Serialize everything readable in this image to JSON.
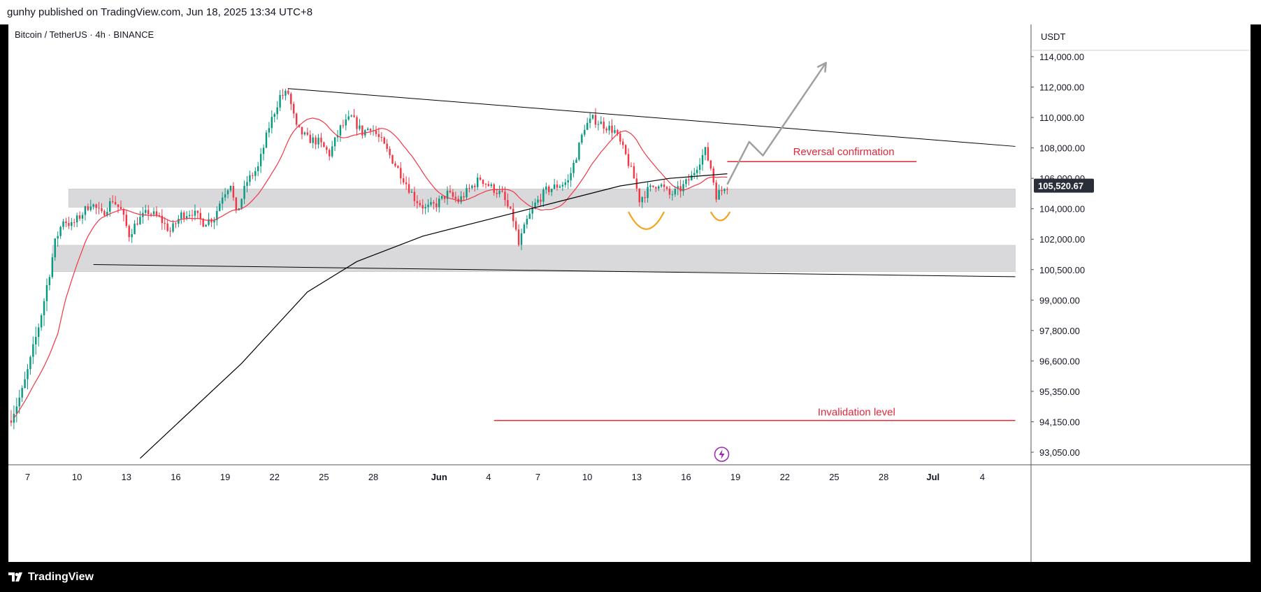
{
  "header": {
    "publisher_line": "gunhy published on TradingView.com, Jun 18, 2025 13:34 UTC+8"
  },
  "footer": {
    "brand": "TradingView"
  },
  "chart_data": {
    "type": "candlestick",
    "symbol_line": "Bitcoin / TetherUS · 4h · BINANCE",
    "currency": "USDT",
    "last_price": 105520.67,
    "last_price_label": "105,520.67",
    "y_ticks": [
      {
        "value": 114000,
        "label": "114,000.00"
      },
      {
        "value": 112000,
        "label": "112,000.00"
      },
      {
        "value": 110000,
        "label": "110,000.00"
      },
      {
        "value": 108000,
        "label": "108,000.00"
      },
      {
        "value": 106000,
        "label": "106,000.00"
      },
      {
        "value": 104000,
        "label": "104,000.00"
      },
      {
        "value": 102000,
        "label": "102,000.00"
      },
      {
        "value": 100500,
        "label": "100,500.00"
      },
      {
        "value": 99000,
        "label": "99,000.00"
      },
      {
        "value": 97800,
        "label": "97,800.00"
      },
      {
        "value": 96600,
        "label": "96,600.00"
      },
      {
        "value": 95350,
        "label": "95,350.00"
      },
      {
        "value": 94150,
        "label": "94,150.00"
      },
      {
        "value": 93050,
        "label": "93,050.00"
      }
    ],
    "x_ticks": [
      {
        "date": "2025-05-07",
        "label": "7"
      },
      {
        "date": "2025-05-10",
        "label": "10"
      },
      {
        "date": "2025-05-13",
        "label": "13"
      },
      {
        "date": "2025-05-16",
        "label": "16"
      },
      {
        "date": "2025-05-19",
        "label": "19"
      },
      {
        "date": "2025-05-22",
        "label": "22"
      },
      {
        "date": "2025-05-25",
        "label": "25"
      },
      {
        "date": "2025-05-28",
        "label": "28"
      },
      {
        "date": "2025-06-01",
        "label": "Jun"
      },
      {
        "date": "2025-06-04",
        "label": "4"
      },
      {
        "date": "2025-06-07",
        "label": "7"
      },
      {
        "date": "2025-06-10",
        "label": "10"
      },
      {
        "date": "2025-06-13",
        "label": "13"
      },
      {
        "date": "2025-06-16",
        "label": "16"
      },
      {
        "date": "2025-06-19",
        "label": "19"
      },
      {
        "date": "2025-06-22",
        "label": "22"
      },
      {
        "date": "2025-06-25",
        "label": "25"
      },
      {
        "date": "2025-06-28",
        "label": "28"
      },
      {
        "date": "2025-07-01",
        "label": "Jul"
      },
      {
        "date": "2025-07-04",
        "label": "4"
      }
    ],
    "price_path": [
      [
        "2025-05-06 00:00",
        94200
      ],
      [
        "2025-05-06 20:00",
        95300
      ],
      [
        "2025-05-07 12:00",
        97000
      ],
      [
        "2025-05-08 04:00",
        99000
      ],
      [
        "2025-05-08 20:00",
        101800
      ],
      [
        "2025-05-09 08:00",
        103300
      ],
      [
        "2025-05-09 20:00",
        102900
      ],
      [
        "2025-05-10 12:00",
        103700
      ],
      [
        "2025-05-11 00:00",
        104400
      ],
      [
        "2025-05-11 16:00",
        103600
      ],
      [
        "2025-05-12 08:00",
        104600
      ],
      [
        "2025-05-12 20:00",
        103900
      ],
      [
        "2025-05-13 08:00",
        102300
      ],
      [
        "2025-05-13 20:00",
        103200
      ],
      [
        "2025-05-14 12:00",
        103800
      ],
      [
        "2025-05-15 04:00",
        103400
      ],
      [
        "2025-05-15 20:00",
        102500
      ],
      [
        "2025-05-16 12:00",
        103600
      ],
      [
        "2025-05-17 04:00",
        103800
      ],
      [
        "2025-05-17 20:00",
        103100
      ],
      [
        "2025-05-18 12:00",
        103400
      ],
      [
        "2025-05-19 00:00",
        104900
      ],
      [
        "2025-05-19 12:00",
        105700
      ],
      [
        "2025-05-19 20:00",
        103600
      ],
      [
        "2025-05-20 12:00",
        105800
      ],
      [
        "2025-05-21 04:00",
        106700
      ],
      [
        "2025-05-21 20:00",
        109400
      ],
      [
        "2025-05-22 12:00",
        111400
      ],
      [
        "2025-05-23 00:00",
        111600
      ],
      [
        "2025-05-23 12:00",
        109300
      ],
      [
        "2025-05-24 04:00",
        108600
      ],
      [
        "2025-05-24 20:00",
        108400
      ],
      [
        "2025-05-25 12:00",
        107600
      ],
      [
        "2025-05-26 04:00",
        109300
      ],
      [
        "2025-05-26 20:00",
        110000
      ],
      [
        "2025-05-27 12:00",
        109000
      ],
      [
        "2025-05-28 00:00",
        109400
      ],
      [
        "2025-05-28 16:00",
        108400
      ],
      [
        "2025-05-29 08:00",
        107200
      ],
      [
        "2025-05-30 00:00",
        106000
      ],
      [
        "2025-05-30 16:00",
        104700
      ],
      [
        "2025-05-31 08:00",
        104000
      ],
      [
        "2025-06-01 00:00",
        104300
      ],
      [
        "2025-06-01 16:00",
        105000
      ],
      [
        "2025-06-02 08:00",
        104500
      ],
      [
        "2025-06-03 00:00",
        105300
      ],
      [
        "2025-06-03 16:00",
        106000
      ],
      [
        "2025-06-04 08:00",
        105400
      ],
      [
        "2025-06-05 00:00",
        104900
      ],
      [
        "2025-06-05 16:00",
        103300
      ],
      [
        "2025-06-06 00:00",
        101700
      ],
      [
        "2025-06-06 12:00",
        103200
      ],
      [
        "2025-06-07 00:00",
        104300
      ],
      [
        "2025-06-07 16:00",
        105200
      ],
      [
        "2025-06-08 08:00",
        105500
      ],
      [
        "2025-06-09 00:00",
        105800
      ],
      [
        "2025-06-09 12:00",
        107500
      ],
      [
        "2025-06-10 00:00",
        109400
      ],
      [
        "2025-06-10 12:00",
        109900
      ],
      [
        "2025-06-11 04:00",
        109500
      ],
      [
        "2025-06-11 20:00",
        109100
      ],
      [
        "2025-06-12 12:00",
        107500
      ],
      [
        "2025-06-13 00:00",
        106000
      ],
      [
        "2025-06-13 08:00",
        104600
      ],
      [
        "2025-06-13 20:00",
        105200
      ],
      [
        "2025-06-14 12:00",
        105700
      ],
      [
        "2025-06-15 04:00",
        104900
      ],
      [
        "2025-06-15 20:00",
        105300
      ],
      [
        "2025-06-16 12:00",
        106100
      ],
      [
        "2025-06-17 00:00",
        107200
      ],
      [
        "2025-06-17 08:00",
        107800
      ],
      [
        "2025-06-17 16:00",
        106700
      ],
      [
        "2025-06-18 00:00",
        104900
      ],
      [
        "2025-06-18 08:00",
        105200
      ],
      [
        "2025-06-18 12:00",
        105520
      ]
    ],
    "annotations": {
      "resistance_line": {
        "from": [
          "2025-05-22 20:00",
          111900
        ],
        "to": [
          "2025-07-06 00:00",
          108100
        ]
      },
      "support_line": {
        "from": [
          "2025-05-11 00:00",
          100750
        ],
        "to": [
          "2025-07-06 00:00",
          100150
        ]
      },
      "zone_upper": {
        "from": "2025-05-09 12:00",
        "to": "2025-07-06 00:00",
        "low": 104100,
        "high": 105300
      },
      "zone_lower": {
        "from": "2025-05-08 12:00",
        "to": "2025-07-06 00:00",
        "low": 100400,
        "high": 101700
      },
      "reversal_line": {
        "from": "2025-06-18 12:00",
        "to": "2025-06-30 00:00",
        "value": 107100
      },
      "invalidation_line": {
        "from": "2025-06-04 08:00",
        "to": "2025-07-06 00:00",
        "value": 94200
      },
      "projection_path": [
        [
          "2025-06-18 12:00",
          105600
        ],
        [
          "2025-06-19 20:00",
          108400
        ],
        [
          "2025-06-20 16:00",
          107500
        ],
        [
          "2025-06-24 12:00",
          113600
        ]
      ],
      "cup_1": {
        "from": [
          "2025-06-12 12:00",
          103800
        ],
        "to": [
          "2025-06-14 16:00",
          103800
        ],
        "bottom": 102600
      },
      "cup_2": {
        "from": [
          "2025-06-17 12:00",
          103800
        ],
        "to": [
          "2025-06-18 16:00",
          103800
        ],
        "bottom": 103200
      }
    },
    "labels": {
      "reversal": "Reversal confirmation",
      "invalidation": "Invalidation level"
    },
    "colors": {
      "up": "#089981",
      "down": "#f23645",
      "ma_fast": "#f23645",
      "ma_slow": "#000000",
      "zone": "#d9d9db",
      "annotation_red": "#e0283a",
      "cup": "#f7a21b",
      "projection": "#a0a0a0",
      "last_price_bg": "#2a2e39"
    }
  }
}
